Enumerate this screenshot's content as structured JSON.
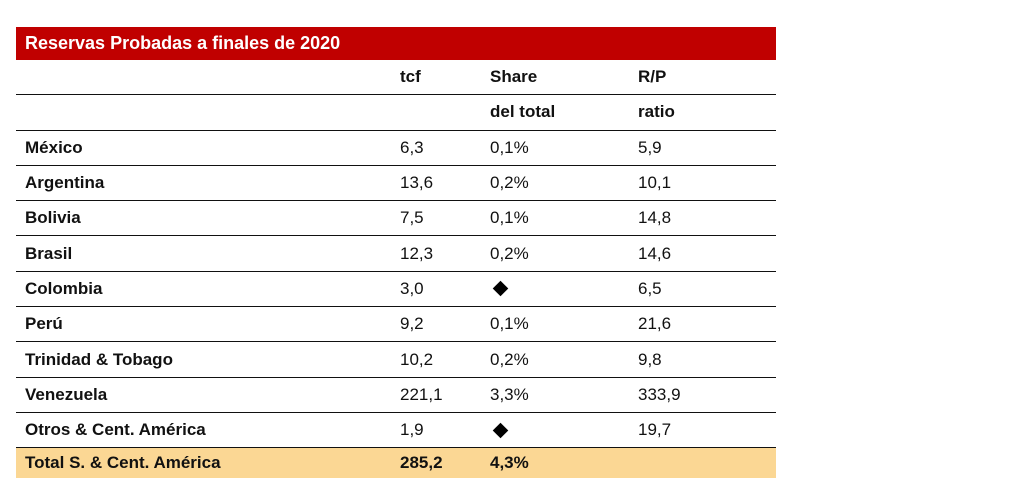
{
  "table": {
    "title": "Reservas Probadas a finales de 2020",
    "header_top": {
      "tcf": "tcf",
      "share": "Share",
      "rp": "R/P"
    },
    "header_bottom": {
      "share": "del total",
      "rp": "ratio"
    },
    "rows": [
      {
        "name": "México",
        "tcf": "6,3",
        "share": "0,1%",
        "rp": "5,9"
      },
      {
        "name": "Argentina",
        "tcf": "13,6",
        "share": "0,2%",
        "rp": "10,1"
      },
      {
        "name": "Bolivia",
        "tcf": "7,5",
        "share": "0,1%",
        "rp": "14,8"
      },
      {
        "name": "Brasil",
        "tcf": "12,3",
        "share": "0,2%",
        "rp": "14,6"
      },
      {
        "name": "Colombia",
        "tcf": "3,0",
        "share_icon": "diamond-icon",
        "rp": "6,5"
      },
      {
        "name": "Perú",
        "tcf": "9,2",
        "share": "0,1%",
        "rp": "21,6"
      },
      {
        "name": "Trinidad & Tobago",
        "tcf": "10,2",
        "share": "0,2%",
        "rp": "9,8"
      },
      {
        "name": "Venezuela",
        "tcf": "221,1",
        "share": "3,3%",
        "rp": "333,9"
      },
      {
        "name": "Otros & Cent. América",
        "tcf": "1,9",
        "share_icon": "diamond-icon",
        "rp": "19,7"
      }
    ],
    "total": {
      "name": "Total S. & Cent. América",
      "tcf": "285,2",
      "share": "4,3%"
    },
    "colors": {
      "title_background": "#c00000",
      "title_text": "#ffffff",
      "total_background": "#fbd794"
    }
  }
}
